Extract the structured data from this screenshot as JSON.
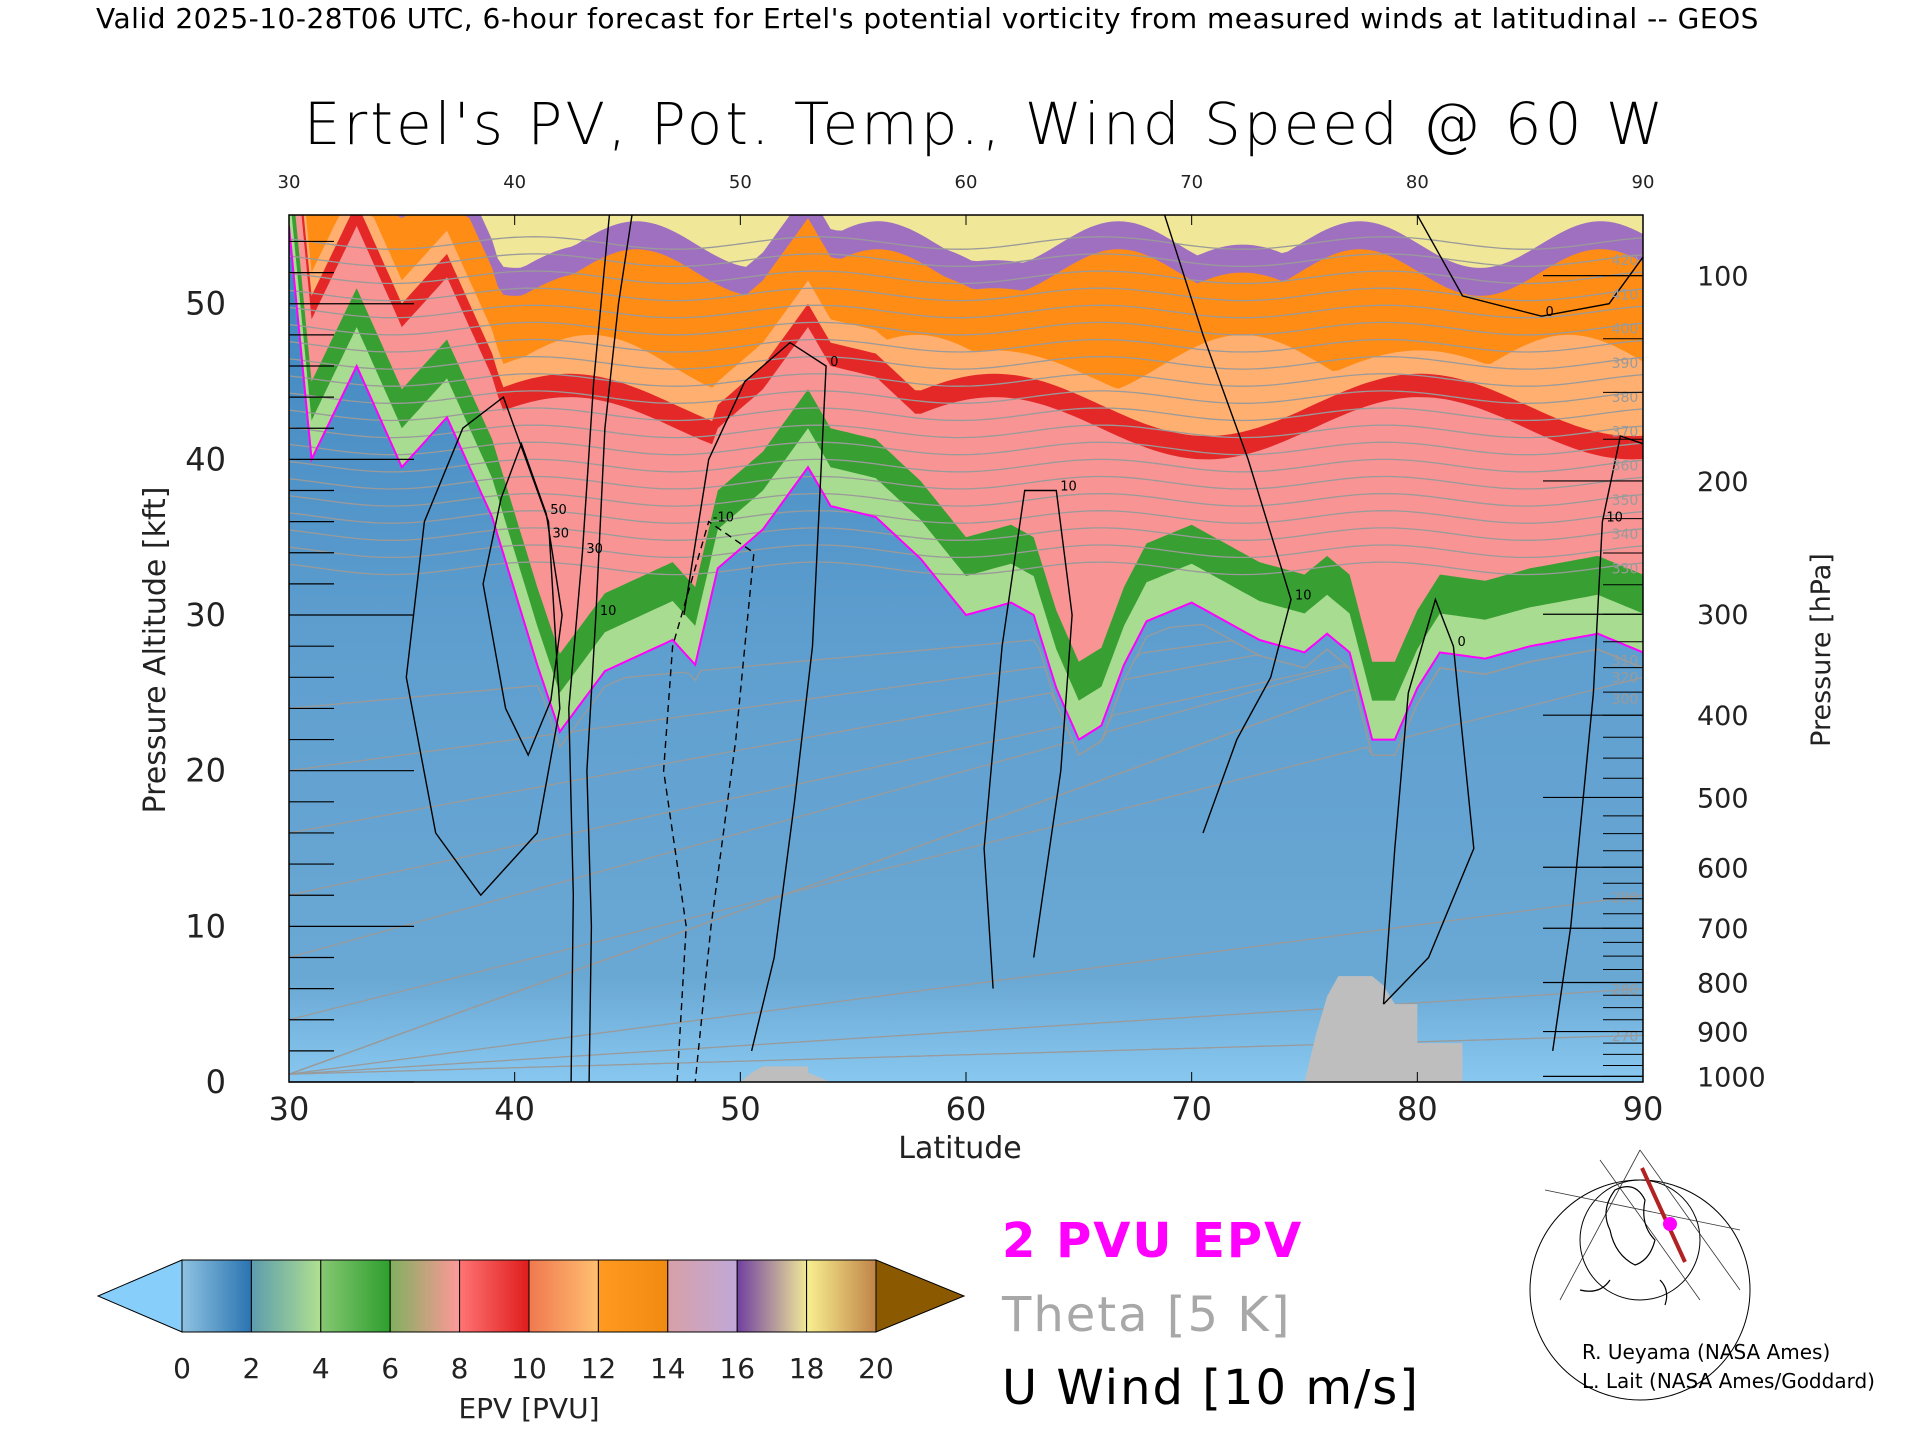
{
  "header": {
    "top_title": "Valid 2025-10-28T06 UTC, 6-hour forecast for Ertel's potential vorticity from measured winds at latitudinal -- GEOS",
    "main_title": "Ertel's PV, Pot. Temp., Wind Speed @ 60 W"
  },
  "legend": {
    "pv_label": "2 PVU EPV",
    "theta_label": "Theta [5 K]",
    "wind_label": "U Wind [10 m/s]",
    "pv_color": "#ff00ff",
    "theta_color": "#a8a8a8"
  },
  "credits": {
    "line1": "R. Ueyama (NASA Ames)",
    "line2": "L. Lait (NASA Ames/Goddard)"
  },
  "chart_data": {
    "type": "heatmap",
    "title": "Ertel's PV, Pot. Temp., Wind Speed @ 60 W",
    "xlabel": "Latitude",
    "ylabel_left": "Pressure Altitude [kft]",
    "ylabel_right": "Pressure [hPa]",
    "xlim": [
      30,
      90
    ],
    "ylim": [
      0,
      55.7
    ],
    "x_ticks": [
      "30",
      "40",
      "50",
      "60",
      "70",
      "80",
      "90"
    ],
    "y_ticks_left": [
      "0",
      "10",
      "20",
      "30",
      "40",
      "50"
    ],
    "y_ticks_right": [
      "100",
      "200",
      "300",
      "400",
      "500",
      "600",
      "700",
      "800",
      "900",
      "1000"
    ],
    "colorbar": {
      "label": "EPV [PVU]",
      "ticks": [
        "0",
        "2",
        "4",
        "6",
        "8",
        "10",
        "12",
        "14",
        "16",
        "18",
        "20"
      ],
      "under_color": "#87cefa",
      "over_color": "#8b5a00",
      "bands": [
        [
          "#8fc2e2",
          "#2a74b0"
        ],
        [
          "#5c9cae",
          "#b0e090"
        ],
        [
          "#86c872",
          "#2e9e2e"
        ],
        [
          "#80b060",
          "#ff9898"
        ],
        [
          "#ff7474",
          "#e01c1c"
        ],
        [
          "#f07850",
          "#ffc070"
        ],
        [
          "#ff9a20",
          "#f08a10"
        ],
        [
          "#d8a0a8",
          "#c0a8d8"
        ],
        [
          "#7040a0",
          "#f0e898"
        ],
        [
          "#f8f090",
          "#c08448"
        ]
      ]
    },
    "tropopause_2pvu": {
      "lat": [
        30,
        31,
        33,
        35,
        37,
        39,
        41,
        42,
        44,
        47,
        48,
        49,
        51,
        53,
        54,
        56,
        58,
        60,
        62,
        63,
        64,
        65,
        66,
        67,
        68,
        70,
        73,
        75,
        76,
        77,
        78,
        79,
        80,
        81,
        83,
        85,
        88,
        90
      ],
      "kft": [
        55,
        40,
        46,
        39.5,
        42.7,
        36.3,
        26.8,
        22.5,
        26.4,
        28.4,
        26.8,
        33,
        35.5,
        39.5,
        37,
        36.3,
        33.6,
        30,
        30.8,
        30,
        25.3,
        22,
        22.9,
        26.8,
        29.6,
        30.8,
        28.4,
        27.6,
        28.8,
        27.6,
        22,
        22,
        25.3,
        27.6,
        27.2,
        28,
        28.8,
        27.6
      ]
    },
    "terrain_kft": [
      {
        "lat": [
          50,
          50.5,
          51,
          53,
          53,
          54
        ],
        "kft": [
          0,
          0.6,
          1,
          1,
          0.6,
          0
        ]
      },
      {
        "lat": [
          75,
          75.5,
          76,
          76.5,
          78,
          78.5,
          79,
          80,
          80,
          82,
          82
        ],
        "kft": [
          0,
          3,
          5.5,
          6.8,
          6.8,
          6.2,
          5,
          5,
          2.5,
          2.5,
          0
        ]
      }
    ],
    "theta_labels": [
      "270",
      "280",
      "290",
      "300",
      "310",
      "320",
      "330",
      "340",
      "350",
      "360",
      "370",
      "380",
      "390",
      "400",
      "410",
      "420"
    ],
    "u_wind_contours": [
      {
        "label": "10",
        "dashed": false,
        "lat": [
          43.3,
          43.4,
          43.2,
          43.6,
          44.0,
          44.6,
          45.2
        ],
        "kft": [
          0,
          10,
          20,
          30,
          42,
          50,
          55.7
        ]
      },
      {
        "label": "30",
        "dashed": false,
        "lat": [
          42.5,
          42.6,
          42.4,
          43.0,
          43.5,
          44.2
        ],
        "kft": [
          0,
          12,
          24,
          34,
          45,
          55.7
        ]
      },
      {
        "label": "50",
        "dashed": false,
        "lat": [
          39.6,
          38.6,
          39.4,
          40.3,
          41.4,
          42.1,
          41.6,
          40.6,
          39.6
        ],
        "kft": [
          24,
          32,
          37.5,
          41,
          36.5,
          30,
          24.5,
          21,
          24
        ]
      },
      {
        "label": "30",
        "dashed": false,
        "lat": [
          36.5,
          35.2,
          36,
          37.7,
          39.5,
          41.5,
          42,
          41,
          38.5,
          36.5
        ],
        "kft": [
          16,
          26,
          36,
          42,
          44,
          36,
          24,
          16,
          12,
          16
        ]
      },
      {
        "label": "-10",
        "dashed": true,
        "lat": [
          47.2,
          47.6,
          46.6,
          47.0,
          48.6,
          50.6,
          49.8,
          48.7,
          48.0
        ],
        "kft": [
          0,
          10,
          20,
          28,
          36,
          34,
          22,
          10,
          0
        ]
      },
      {
        "label": "0",
        "dashed": false,
        "lat": [
          50.5,
          51.5,
          52.4,
          53.2,
          53.8,
          52.2,
          50.2,
          48.6,
          47.5
        ],
        "kft": [
          2,
          8,
          18,
          28,
          46,
          47.5,
          45,
          40,
          30
        ]
      },
      {
        "label": "10",
        "dashed": false,
        "lat": [
          61.2,
          60.8,
          61.6,
          62.6,
          64.0,
          64.7,
          64.2,
          63.0
        ],
        "kft": [
          6,
          15,
          28,
          38,
          38,
          30,
          20,
          8
        ]
      },
      {
        "label": "10",
        "dashed": false,
        "lat": [
          68.8,
          70.5,
          72.5,
          74.4,
          73.5,
          72.0,
          70.5
        ],
        "kft": [
          55.7,
          48,
          40,
          31,
          26,
          22,
          16
        ]
      },
      {
        "label": "0",
        "dashed": false,
        "lat": [
          78.5,
          79.0,
          79.6,
          80.8,
          81.6,
          82.5,
          80.5,
          78.5
        ],
        "kft": [
          5,
          15,
          25,
          31,
          28,
          15,
          8,
          5
        ]
      },
      {
        "label": "10",
        "dashed": false,
        "lat": [
          86.0,
          86.8,
          87.8,
          88.2,
          89.0,
          90.0
        ],
        "kft": [
          2,
          10,
          25,
          36,
          41.5,
          41
        ]
      },
      {
        "label": "0",
        "dashed": false,
        "lat": [
          80.0,
          82.0,
          85.5,
          88.5,
          90.0
        ],
        "kft": [
          55.7,
          50.5,
          49.2,
          50,
          53
        ]
      }
    ]
  }
}
